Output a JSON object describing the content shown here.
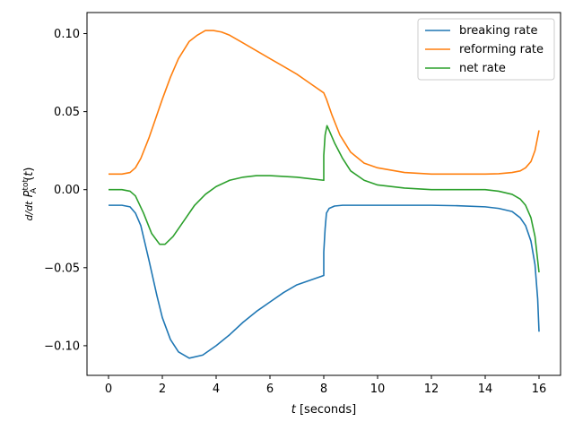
{
  "chart_data": {
    "type": "line",
    "title": "",
    "xlabel": "t [seconds]",
    "ylabel": "d/dt P_A^tot(t)",
    "xlim": [
      -0.8,
      16.8
    ],
    "ylim": [
      -0.119,
      0.1135
    ],
    "xticks": [
      0,
      2,
      4,
      6,
      8,
      10,
      12,
      14,
      16
    ],
    "yticks": [
      -0.1,
      -0.05,
      0.0,
      0.05,
      0.1
    ],
    "xtick_labels": [
      "0",
      "2",
      "4",
      "6",
      "8",
      "10",
      "12",
      "14",
      "16"
    ],
    "ytick_labels": [
      "−0.10",
      "−0.05",
      "0.00",
      "0.05",
      "0.10"
    ],
    "legend_position": "top-right",
    "grid": false,
    "series": [
      {
        "name": "breaking rate",
        "color": "#1f77b4",
        "x": [
          0,
          0.5,
          0.8,
          1.0,
          1.2,
          1.5,
          1.8,
          2.0,
          2.3,
          2.6,
          3.0,
          3.5,
          4.0,
          4.5,
          5.0,
          5.5,
          6.0,
          6.5,
          7.0,
          7.5,
          8.0,
          8.0,
          8.05,
          8.1,
          8.2,
          8.4,
          8.7,
          9.0,
          10,
          11,
          12,
          13,
          14,
          14.5,
          15.0,
          15.3,
          15.5,
          15.7,
          15.85,
          15.95,
          16.0
        ],
        "y": [
          -0.01,
          -0.01,
          -0.011,
          -0.015,
          -0.023,
          -0.045,
          -0.068,
          -0.082,
          -0.096,
          -0.104,
          -0.108,
          -0.106,
          -0.1,
          -0.093,
          -0.085,
          -0.078,
          -0.072,
          -0.066,
          -0.061,
          -0.058,
          -0.055,
          -0.04,
          -0.025,
          -0.015,
          -0.012,
          -0.0105,
          -0.01,
          -0.01,
          -0.01,
          -0.01,
          -0.01,
          -0.0103,
          -0.011,
          -0.012,
          -0.014,
          -0.018,
          -0.023,
          -0.033,
          -0.048,
          -0.07,
          -0.091
        ]
      },
      {
        "name": "reforming rate",
        "color": "#ff7f0e",
        "x": [
          0,
          0.5,
          0.8,
          1.0,
          1.2,
          1.5,
          1.8,
          2.0,
          2.3,
          2.6,
          3.0,
          3.3,
          3.6,
          3.9,
          4.2,
          4.5,
          5.0,
          5.5,
          6.0,
          6.5,
          7.0,
          7.5,
          8.0,
          8.1,
          8.3,
          8.6,
          9.0,
          9.5,
          10,
          11,
          12,
          13,
          14,
          14.5,
          15.0,
          15.3,
          15.5,
          15.7,
          15.85,
          16.0
        ],
        "y": [
          0.01,
          0.01,
          0.011,
          0.014,
          0.02,
          0.033,
          0.048,
          0.058,
          0.072,
          0.084,
          0.095,
          0.099,
          0.102,
          0.102,
          0.101,
          0.099,
          0.094,
          0.089,
          0.084,
          0.079,
          0.074,
          0.068,
          0.062,
          0.058,
          0.048,
          0.035,
          0.024,
          0.017,
          0.014,
          0.011,
          0.01,
          0.01,
          0.01,
          0.0102,
          0.011,
          0.012,
          0.014,
          0.018,
          0.025,
          0.038
        ]
      },
      {
        "name": "net rate",
        "color": "#2ca02c",
        "x": [
          0,
          0.5,
          0.8,
          1.0,
          1.3,
          1.6,
          1.9,
          2.1,
          2.4,
          2.8,
          3.2,
          3.6,
          4.0,
          4.5,
          5.0,
          5.5,
          6.0,
          6.5,
          7.0,
          7.5,
          8.0,
          8.0,
          8.05,
          8.12,
          8.2,
          8.4,
          8.7,
          9.0,
          9.5,
          10,
          11,
          12,
          13,
          14,
          14.5,
          15.0,
          15.3,
          15.5,
          15.7,
          15.85,
          16.0
        ],
        "y": [
          0.0,
          0.0,
          -0.001,
          -0.004,
          -0.015,
          -0.028,
          -0.035,
          -0.035,
          -0.03,
          -0.02,
          -0.01,
          -0.003,
          0.002,
          0.006,
          0.008,
          0.009,
          0.009,
          0.0085,
          0.008,
          0.007,
          0.006,
          0.022,
          0.035,
          0.041,
          0.038,
          0.03,
          0.02,
          0.012,
          0.006,
          0.003,
          0.001,
          0.0,
          0.0,
          0.0,
          -0.001,
          -0.003,
          -0.006,
          -0.01,
          -0.018,
          -0.03,
          -0.053
        ]
      }
    ]
  }
}
